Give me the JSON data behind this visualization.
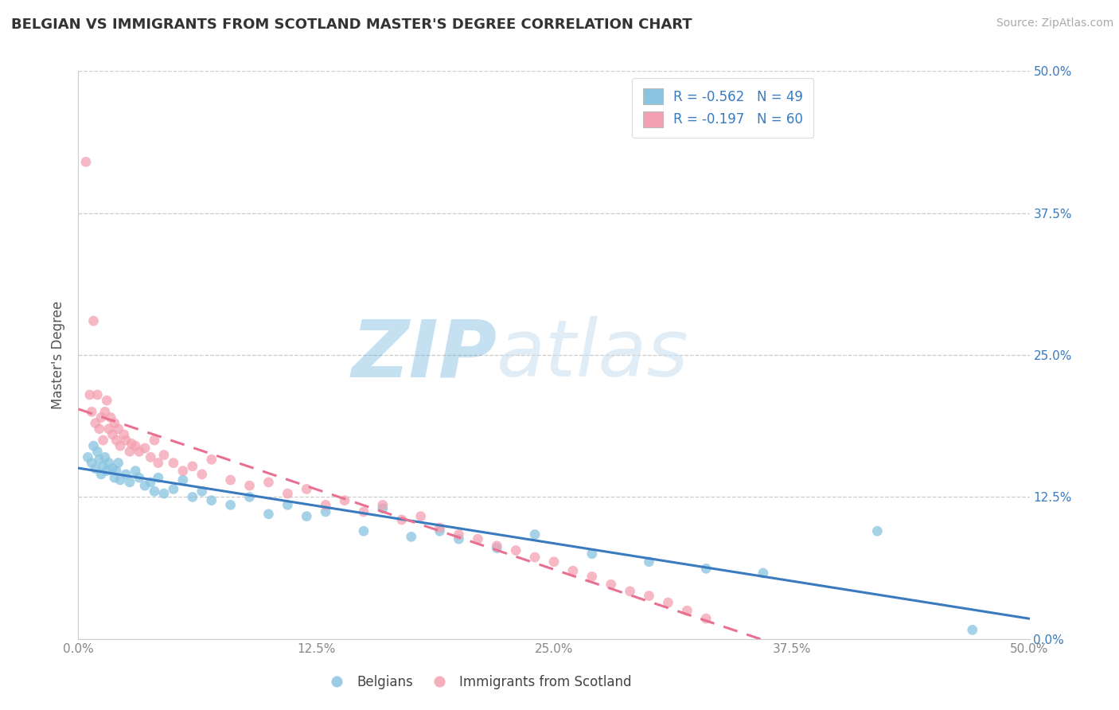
{
  "title": "BELGIAN VS IMMIGRANTS FROM SCOTLAND MASTER'S DEGREE CORRELATION CHART",
  "source": "Source: ZipAtlas.com",
  "ylabel": "Master's Degree",
  "xmin": 0.0,
  "xmax": 0.5,
  "ymin": 0.0,
  "ymax": 0.5,
  "xtick_labels": [
    "0.0%",
    "12.5%",
    "25.0%",
    "37.5%",
    "50.0%"
  ],
  "xtick_vals": [
    0.0,
    0.125,
    0.25,
    0.375,
    0.5
  ],
  "ytick_vals": [
    0.0,
    0.125,
    0.25,
    0.375,
    0.5
  ],
  "right_ytick_labels": [
    "0.0%",
    "12.5%",
    "25.0%",
    "37.5%",
    "50.0%"
  ],
  "legend_r1": "R = -0.562   N = 49",
  "legend_r2": "R = -0.197   N = 60",
  "blue_color": "#89c4e1",
  "pink_color": "#f4a0b0",
  "blue_line_color": "#3a7abf",
  "pink_line_color": "#e87090",
  "watermark_zip": "ZIP",
  "watermark_atlas": "atlas",
  "watermark_color": "#c8dff0",
  "legend_text_color": "#3a7abf",
  "title_color": "#333333",
  "tick_color": "#888888",
  "belgians_x": [
    0.005,
    0.007,
    0.008,
    0.009,
    0.01,
    0.011,
    0.012,
    0.013,
    0.014,
    0.015,
    0.016,
    0.018,
    0.019,
    0.02,
    0.021,
    0.022,
    0.025,
    0.027,
    0.03,
    0.032,
    0.035,
    0.038,
    0.04,
    0.042,
    0.045,
    0.05,
    0.055,
    0.06,
    0.065,
    0.07,
    0.08,
    0.09,
    0.1,
    0.11,
    0.12,
    0.13,
    0.15,
    0.16,
    0.175,
    0.19,
    0.2,
    0.22,
    0.24,
    0.27,
    0.3,
    0.33,
    0.36,
    0.42,
    0.47
  ],
  "belgians_y": [
    0.16,
    0.155,
    0.17,
    0.15,
    0.165,
    0.158,
    0.145,
    0.152,
    0.16,
    0.148,
    0.155,
    0.15,
    0.142,
    0.148,
    0.155,
    0.14,
    0.145,
    0.138,
    0.148,
    0.142,
    0.135,
    0.138,
    0.13,
    0.142,
    0.128,
    0.132,
    0.14,
    0.125,
    0.13,
    0.122,
    0.118,
    0.125,
    0.11,
    0.118,
    0.108,
    0.112,
    0.095,
    0.115,
    0.09,
    0.095,
    0.088,
    0.08,
    0.092,
    0.075,
    0.068,
    0.062,
    0.058,
    0.095,
    0.008
  ],
  "scotland_x": [
    0.004,
    0.006,
    0.007,
    0.008,
    0.009,
    0.01,
    0.011,
    0.012,
    0.013,
    0.014,
    0.015,
    0.016,
    0.017,
    0.018,
    0.019,
    0.02,
    0.021,
    0.022,
    0.024,
    0.025,
    0.027,
    0.028,
    0.03,
    0.032,
    0.035,
    0.038,
    0.04,
    0.042,
    0.045,
    0.05,
    0.055,
    0.06,
    0.065,
    0.07,
    0.08,
    0.09,
    0.1,
    0.11,
    0.12,
    0.13,
    0.14,
    0.15,
    0.16,
    0.17,
    0.18,
    0.19,
    0.2,
    0.21,
    0.22,
    0.23,
    0.24,
    0.25,
    0.26,
    0.27,
    0.28,
    0.29,
    0.3,
    0.31,
    0.32,
    0.33
  ],
  "scotland_y": [
    0.42,
    0.215,
    0.2,
    0.28,
    0.19,
    0.215,
    0.185,
    0.195,
    0.175,
    0.2,
    0.21,
    0.185,
    0.195,
    0.18,
    0.19,
    0.175,
    0.185,
    0.17,
    0.18,
    0.175,
    0.165,
    0.172,
    0.17,
    0.165,
    0.168,
    0.16,
    0.175,
    0.155,
    0.162,
    0.155,
    0.148,
    0.152,
    0.145,
    0.158,
    0.14,
    0.135,
    0.138,
    0.128,
    0.132,
    0.118,
    0.122,
    0.112,
    0.118,
    0.105,
    0.108,
    0.098,
    0.092,
    0.088,
    0.082,
    0.078,
    0.072,
    0.068,
    0.06,
    0.055,
    0.048,
    0.042,
    0.038,
    0.032,
    0.025,
    0.018
  ]
}
